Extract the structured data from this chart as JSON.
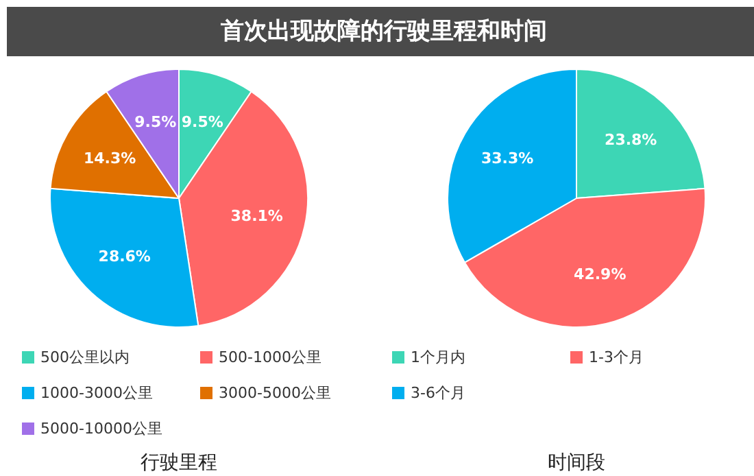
{
  "chart_data": [
    {
      "type": "pie",
      "title": "首次出现故障的行驶里程和时间",
      "xlabel": "行驶里程",
      "categories": [
        "500公里以内",
        "500-1000公里",
        "1000-3000公里",
        "3000-5000公里",
        "5000-10000公里"
      ],
      "values": [
        9.5,
        38.1,
        28.6,
        14.3,
        9.5
      ],
      "colors": [
        "#3dd6b5",
        "#ff6666",
        "#00aeef",
        "#e07000",
        "#a070e8"
      ],
      "value_labels": [
        "9.5%",
        "38.1%",
        "28.6%",
        "14.3%",
        "9.5%"
      ],
      "legend": "bottom"
    },
    {
      "type": "pie",
      "xlabel": "时间段",
      "categories": [
        "1个月内",
        "1-3个月",
        "3-6个月"
      ],
      "values": [
        23.8,
        42.9,
        33.3
      ],
      "colors": [
        "#3dd6b5",
        "#ff6666",
        "#00aeef"
      ],
      "value_labels": [
        "23.8%",
        "42.9%",
        "33.3%"
      ],
      "legend": "bottom"
    }
  ]
}
